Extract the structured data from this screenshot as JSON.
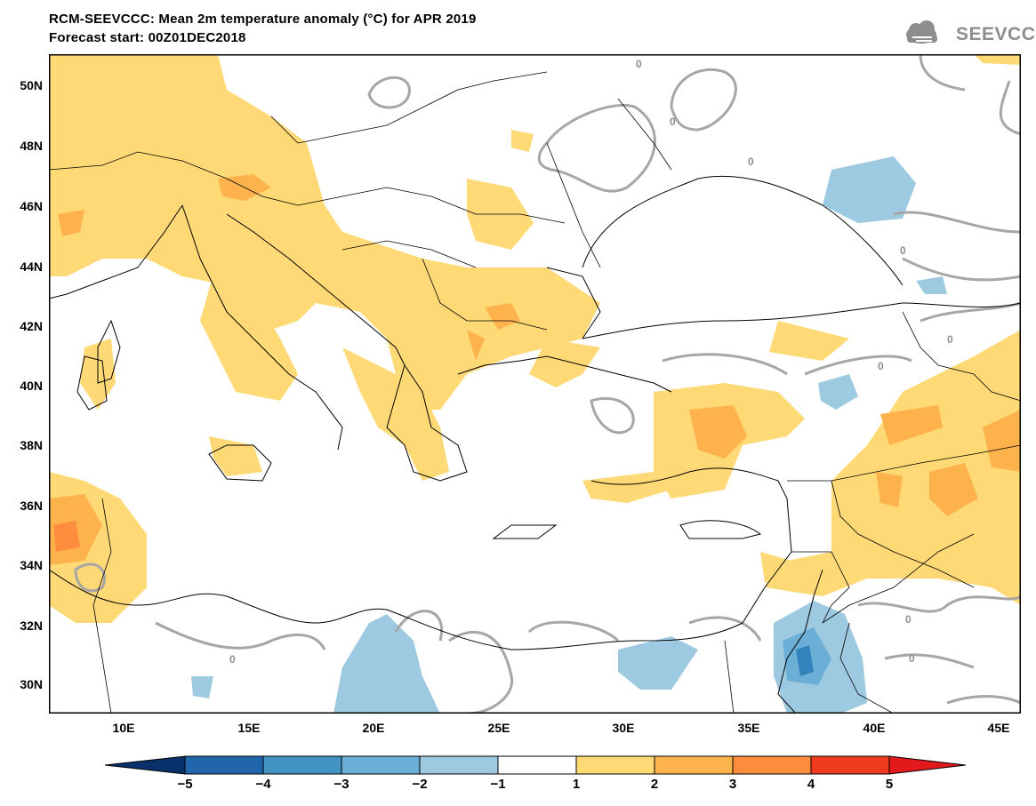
{
  "title": "RCM-SEEVCCC: Mean 2m temperature anomaly (°C) for APR 2019",
  "subtitle": "Forecast start: 00Z01DEC2018",
  "logo": {
    "text": "SEEVCCC",
    "icon": "cloud-icon",
    "color": "#8d8d8d"
  },
  "map": {
    "lat_labels": [
      "50N",
      "48N",
      "46N",
      "44N",
      "42N",
      "40N",
      "38N",
      "36N",
      "34N",
      "32N",
      "30N"
    ],
    "lon_labels": [
      "10E",
      "15E",
      "20E",
      "25E",
      "30E",
      "35E",
      "40E",
      "45E"
    ],
    "contour_label": "0",
    "colors": {
      "pos_1_2": "#fed976",
      "pos_2_3": "#feb24c",
      "pos_3_4": "#fd8d3c",
      "neg_1_2": "#9ecae1",
      "neg_2_3": "#6baed6",
      "neg_3_4": "#3182bd",
      "contour": "#a6a6a6"
    }
  },
  "colorbar": {
    "labels": [
      "−5",
      "−4",
      "−3",
      "−2",
      "−1",
      "1",
      "2",
      "3",
      "4",
      "5"
    ],
    "colors": [
      "#08306b",
      "#2166ac",
      "#4393c3",
      "#6baed6",
      "#9ecae1",
      "#ffffff",
      "#fed976",
      "#feb24c",
      "#fd8d3c",
      "#f03b20",
      "#e31a1c"
    ]
  }
}
